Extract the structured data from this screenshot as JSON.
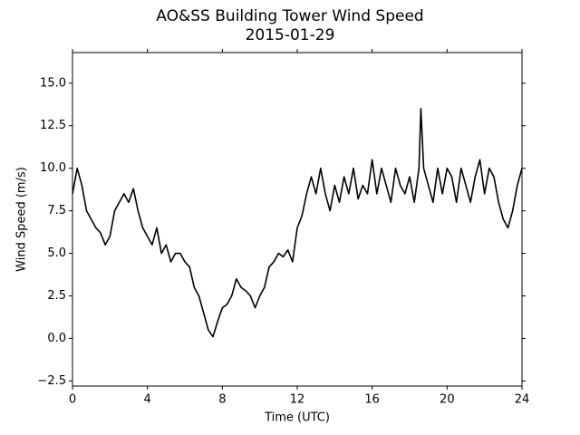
{
  "chart_data": {
    "type": "line",
    "title": "AO&SS Building Tower Wind Speed",
    "subtitle": "2015-01-29",
    "x_label": "Time (UTC)",
    "y_label": "Wind Speed (m/s)",
    "xlim": [
      0,
      24
    ],
    "xticks": [
      0,
      4,
      8,
      12,
      16,
      20,
      24
    ],
    "ylim": [
      -2.8,
      16.8
    ],
    "yticks": [
      {
        "value": -2.5,
        "label": "−2.5"
      },
      {
        "value": 0,
        "label": "0.0"
      },
      2.5,
      {
        "value": 5,
        "label": "5.0"
      },
      7.5,
      {
        "value": 10,
        "label": "10.0"
      },
      12.5,
      {
        "value": 15,
        "label": "15.0"
      }
    ],
    "grid": false,
    "series": [
      {
        "color": "#000000",
        "x": [
          0,
          0.25,
          0.5,
          0.75,
          1,
          1.25,
          1.5,
          1.75,
          2,
          2.25,
          2.5,
          2.75,
          3,
          3.25,
          3.5,
          3.75,
          4,
          4.25,
          4.5,
          4.75,
          5,
          5.25,
          5.5,
          5.75,
          6,
          6.25,
          6.5,
          6.75,
          7,
          7.25,
          7.5,
          7.75,
          8,
          8.25,
          8.5,
          8.75,
          9,
          9.25,
          9.5,
          9.75,
          10,
          10.25,
          10.5,
          10.75,
          11,
          11.25,
          11.5,
          11.75,
          12,
          12.25,
          12.5,
          12.75,
          13,
          13.25,
          13.5,
          13.75,
          14,
          14.25,
          14.5,
          14.75,
          15,
          15.25,
          15.5,
          15.75,
          16,
          16.25,
          16.5,
          16.75,
          17,
          17.25,
          17.5,
          17.75,
          18,
          18.25,
          18.5,
          18.6,
          18.75,
          19,
          19.25,
          19.5,
          19.75,
          20,
          20.25,
          20.5,
          20.75,
          21,
          21.25,
          21.5,
          21.75,
          22,
          22.25,
          22.5,
          22.75,
          23,
          23.25,
          23.5,
          23.75,
          24
        ],
        "values": [
          8.5,
          10,
          9,
          7.5,
          7,
          6.5,
          6.2,
          5.5,
          6,
          7.5,
          8,
          8.5,
          8,
          8.8,
          7.5,
          6.5,
          6,
          5.5,
          6.5,
          5,
          5.5,
          4.5,
          5,
          5,
          4.5,
          4.2,
          3,
          2.5,
          1.5,
          0.5,
          0.1,
          1,
          1.8,
          2,
          2.5,
          3.5,
          3,
          2.8,
          2.5,
          1.8,
          2.5,
          3,
          4.2,
          4.5,
          5,
          4.8,
          5.2,
          4.5,
          6.5,
          7.2,
          8.5,
          9.5,
          8.5,
          10,
          8.5,
          7.5,
          9,
          8,
          9.5,
          8.5,
          10,
          8.2,
          9,
          8.5,
          10.5,
          8.5,
          10,
          9,
          8,
          10,
          9,
          8.5,
          9.5,
          8,
          10,
          13.5,
          10,
          9,
          8,
          10,
          8.5,
          10,
          9.5,
          8,
          10,
          9,
          8,
          9.5,
          10.5,
          8.5,
          10,
          9.5,
          8,
          7,
          6.5,
          7.5,
          9,
          10
        ]
      }
    ]
  }
}
